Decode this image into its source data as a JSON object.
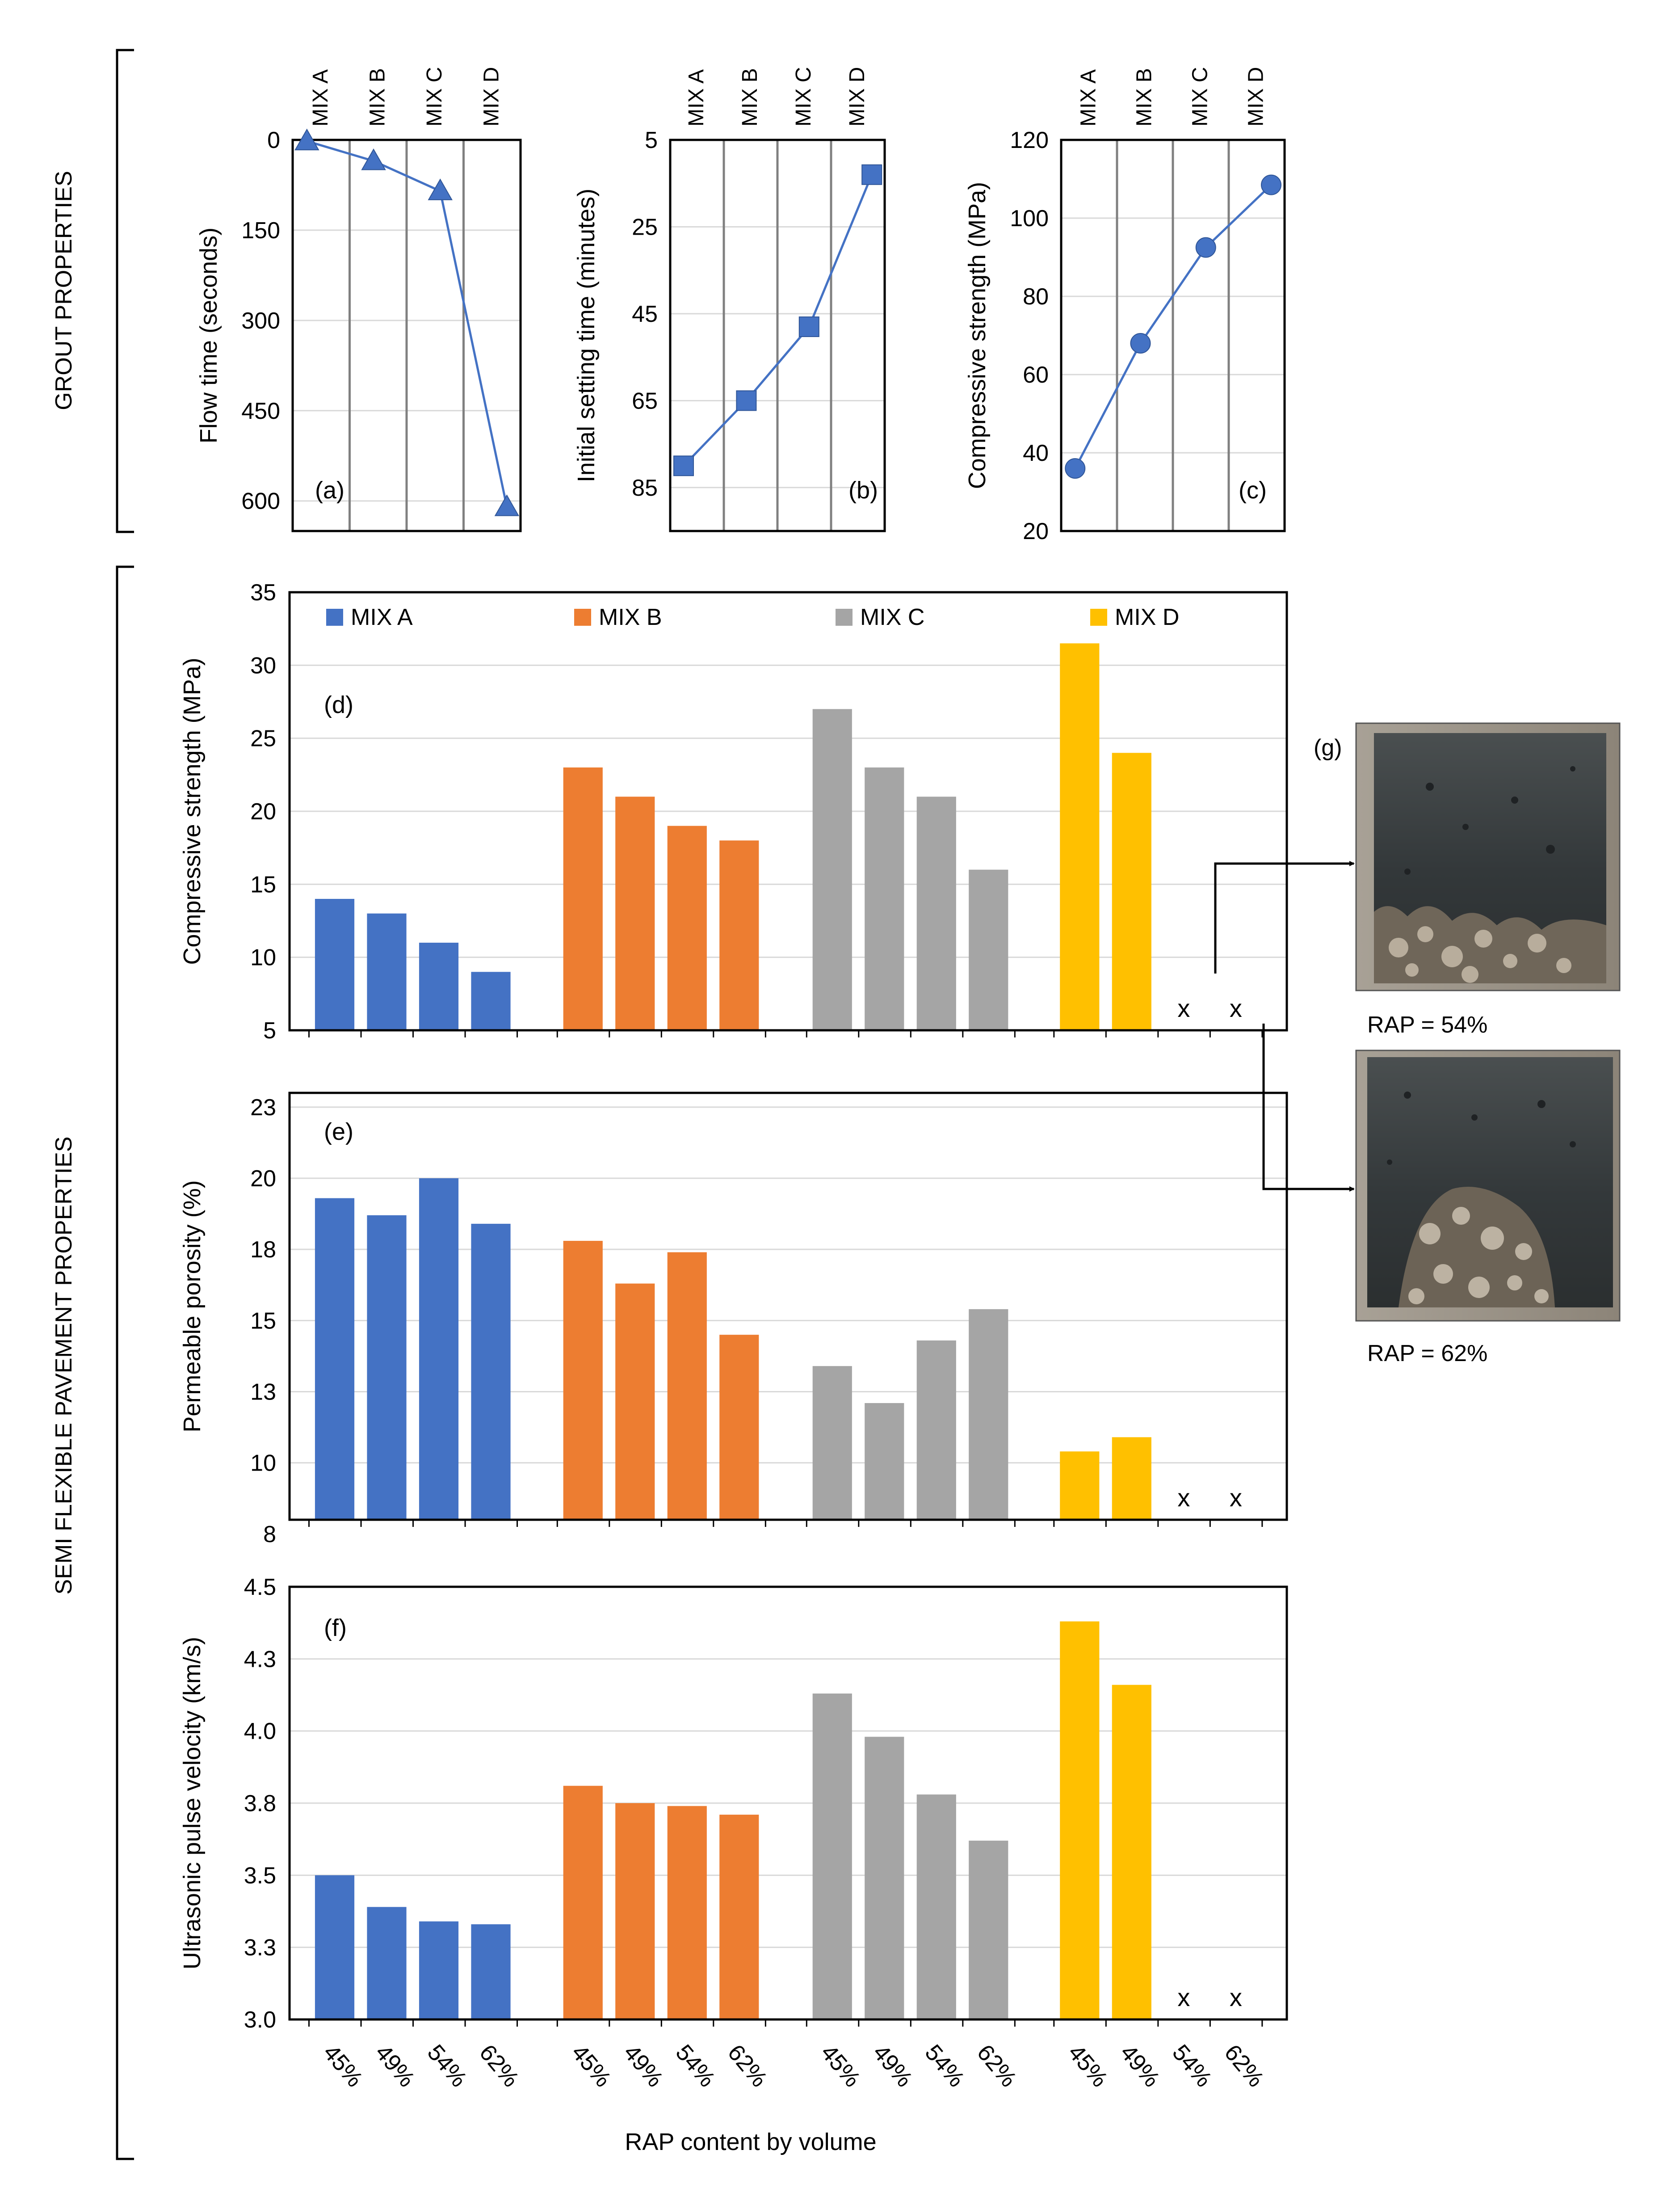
{
  "section_labels": {
    "grout": "GROUT PROPERTIES",
    "sfp": "SEMI FLEXIBLE PAVEMENT PROPERTIES",
    "x_title": "RAP content by volume"
  },
  "colors": {
    "line": "#4472C4",
    "mix_a": "#4472C4",
    "mix_b": "#ED7D31",
    "mix_c": "#A5A5A5",
    "mix_d": "#FFC000",
    "grid": "#D9D9D9",
    "category_grid": "#808080"
  },
  "photos": {
    "label": "(g)",
    "top_caption": "RAP  = 54%",
    "bottom_caption": "RAP  = 62%"
  },
  "chart_data": [
    {
      "id": "a",
      "type": "line",
      "panel_label": "(a)",
      "marker": "triangle",
      "categories": [
        "MIX A",
        "MIX B",
        "MIX C",
        "MIX D"
      ],
      "values": [
        2,
        35,
        85,
        610
      ],
      "ylabel": "Flow time (seconds)",
      "ylim": [
        0,
        650
      ],
      "yticks": [
        0,
        150,
        300,
        450,
        600
      ],
      "y_reversed": true
    },
    {
      "id": "b",
      "type": "line",
      "panel_label": "(b)",
      "marker": "square",
      "categories": [
        "MIX A",
        "MIX B",
        "MIX C",
        "MIX D"
      ],
      "values": [
        80,
        65,
        48,
        13
      ],
      "ylabel": "Initial setting time (minutes)",
      "ylim": [
        5,
        95
      ],
      "yticks": [
        5,
        25,
        45,
        65,
        85
      ],
      "y_reversed": true
    },
    {
      "id": "c",
      "type": "line",
      "panel_label": "(c)",
      "marker": "circle",
      "categories": [
        "MIX A",
        "MIX B",
        "MIX C",
        "MIX D"
      ],
      "values": [
        36,
        68,
        92.5,
        108.5
      ],
      "ylabel": "Compressive strength (MPa)",
      "ylim": [
        20,
        120
      ],
      "yticks": [
        20,
        40,
        60,
        80,
        100,
        120
      ],
      "y_reversed": false
    },
    {
      "id": "d",
      "type": "bar",
      "panel_label": "(d)",
      "categories": [
        "45%",
        "49%",
        "54%",
        "62%"
      ],
      "legend": [
        "MIX A",
        "MIX B",
        "MIX C",
        "MIX D"
      ],
      "series": [
        {
          "name": "MIX A",
          "values": [
            14,
            13,
            11,
            9
          ]
        },
        {
          "name": "MIX B",
          "values": [
            23,
            21,
            19,
            18
          ]
        },
        {
          "name": "MIX C",
          "values": [
            27,
            23,
            21,
            16
          ]
        },
        {
          "name": "MIX D",
          "values": [
            31.5,
            24,
            null,
            null
          ]
        }
      ],
      "missing_marker": "x",
      "ylabel": "Compressive strength  (MPa)",
      "ylim": [
        5,
        35
      ],
      "yticks": [
        5,
        10,
        15,
        20,
        25,
        30,
        35
      ]
    },
    {
      "id": "e",
      "type": "bar",
      "panel_label": "(e)",
      "categories": [
        "45%",
        "49%",
        "54%",
        "62%"
      ],
      "series": [
        {
          "name": "MIX A",
          "values": [
            19.3,
            18.7,
            20,
            18.4
          ]
        },
        {
          "name": "MIX B",
          "values": [
            17.8,
            16.3,
            17.4,
            14.5
          ]
        },
        {
          "name": "MIX C",
          "values": [
            13.4,
            12.1,
            14.3,
            15.4
          ]
        },
        {
          "name": "MIX D",
          "values": [
            10.4,
            10.9,
            null,
            null
          ]
        }
      ],
      "missing_marker": "x",
      "ylabel": "Permeable porosity (%)",
      "ylim": [
        8,
        23
      ],
      "yticks": [
        8,
        10,
        13,
        15,
        18,
        20,
        23
      ],
      "ytick_positions": [
        7.5,
        10,
        12.5,
        15,
        17.5,
        20,
        22.5
      ]
    },
    {
      "id": "f",
      "type": "bar",
      "panel_label": "(f)",
      "categories": [
        "45%",
        "49%",
        "54%",
        "62%"
      ],
      "series": [
        {
          "name": "MIX A",
          "values": [
            3.5,
            3.39,
            3.34,
            3.33
          ]
        },
        {
          "name": "MIX B",
          "values": [
            3.81,
            3.75,
            3.74,
            3.71
          ]
        },
        {
          "name": "MIX C",
          "values": [
            4.13,
            3.98,
            3.78,
            3.62
          ]
        },
        {
          "name": "MIX D",
          "values": [
            4.38,
            4.16,
            null,
            null
          ]
        }
      ],
      "missing_marker": "x",
      "ylabel": "Ultrasonic pulse velocity (km/s)",
      "ylim": [
        3.0,
        4.5
      ],
      "yticks": [
        "3.0",
        "3.3",
        "3.5",
        "3.8",
        "4.0",
        "4.3",
        "4.5"
      ],
      "ytick_positions": [
        3.0,
        3.25,
        3.5,
        3.75,
        4.0,
        4.25,
        4.5
      ]
    }
  ]
}
